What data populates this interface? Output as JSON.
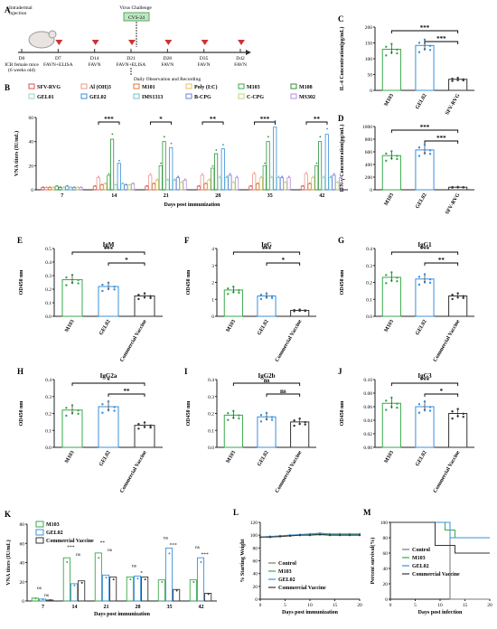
{
  "timeline": {
    "injection_label": "Intradermal\ninjection",
    "mouse_label": "ICR female mice\n(6 weeks old)",
    "challenge_label": "Virus Challenge",
    "challenge_virus": "CVS-24",
    "daily_label": "Daily Observation and Recording",
    "days": [
      "D0",
      "D7",
      "D14",
      "D21",
      "D28",
      "D35",
      "D42"
    ],
    "day_notes": [
      "",
      "FAVN+ELISA",
      "FAVN",
      "FAVN+ELISA",
      "FAVN",
      "FAVN",
      "FAVN"
    ]
  },
  "colors": {
    "SFV-RVG": "#d9534f",
    "Al (OH)3": "#e8998d",
    "M101": "#e0793a",
    "Poly (I:C)": "#f0b860",
    "M103": "#3aa84a",
    "M108": "#2f8f3a",
    "GEL01": "#9ad6b8",
    "GEL02": "#3b8fd9",
    "IMS1313": "#6cc6c8",
    "B-CPG": "#6c7fd9",
    "C-CPG": "#b7d97a",
    "MS302": "#b58fd9",
    "Commercial Vaccine": "#333333",
    "Control": "#777777"
  },
  "chart_data": [
    {
      "panel": "B",
      "type": "bar",
      "ylabel": "VNA titers (IU/mL)",
      "xlabel": "Days post immunization",
      "categories": [
        "7",
        "14",
        "21",
        "28",
        "35",
        "42"
      ],
      "ylim": [
        0,
        60
      ],
      "yticks": [
        0,
        20,
        40,
        60
      ],
      "series": [
        {
          "name": "SFV-RVG",
          "values": [
            2,
            3,
            3,
            3,
            3,
            3
          ]
        },
        {
          "name": "Al (OH)3",
          "values": [
            2,
            10,
            12,
            12,
            13,
            13
          ]
        },
        {
          "name": "M101",
          "values": [
            2,
            4,
            5,
            5,
            5,
            5
          ]
        },
        {
          "name": "Poly (I:C)",
          "values": [
            2,
            5,
            8,
            8,
            10,
            10
          ]
        },
        {
          "name": "M103",
          "values": [
            3,
            12,
            20,
            18,
            20,
            20
          ]
        },
        {
          "name": "M108",
          "values": [
            2,
            42,
            40,
            30,
            40,
            40
          ]
        },
        {
          "name": "GEL01",
          "values": [
            2,
            4,
            8,
            10,
            10,
            10
          ]
        },
        {
          "name": "GEL02",
          "values": [
            3,
            22,
            35,
            34,
            52,
            46
          ]
        },
        {
          "name": "IMS1313",
          "values": [
            2,
            5,
            8,
            10,
            10,
            10
          ]
        },
        {
          "name": "B-CPG",
          "values": [
            2,
            4,
            10,
            12,
            10,
            12
          ]
        },
        {
          "name": "C-CPG",
          "values": [
            2,
            4,
            6,
            6,
            6,
            6
          ]
        },
        {
          "name": "MS302",
          "values": [
            2,
            5,
            8,
            10,
            10,
            10
          ]
        }
      ],
      "annotations": [
        "***",
        "*",
        "**",
        "***",
        "**"
      ]
    },
    {
      "panel": "C",
      "title": "IL-4 Concentration(pg/mL)",
      "type": "bar",
      "ylabel": "IL-4 Concentration(pg/mL)",
      "categories": [
        "M103",
        "GEL02",
        "SFV-RVG"
      ],
      "values": [
        130,
        142,
        35
      ],
      "ylim": [
        0,
        200
      ],
      "yticks": [
        0,
        50,
        100,
        150,
        200
      ],
      "annotations": [
        "***",
        "***"
      ]
    },
    {
      "panel": "D",
      "title": "IFN-γ Concentration(pg/mL)",
      "type": "bar",
      "ylabel": "IFN-γ Concentration(pg/mL)",
      "categories": [
        "M103",
        "GEL02",
        "SFV-RVG"
      ],
      "values": [
        540,
        630,
        40
      ],
      "ylim": [
        0,
        1000
      ],
      "yticks": [
        0,
        200,
        400,
        600,
        800,
        1000
      ],
      "annotations": [
        "***",
        "***"
      ]
    },
    {
      "panel": "E",
      "title": "IgM",
      "type": "bar",
      "ylabel": "OD450 nm",
      "categories": [
        "M103",
        "GEL02",
        "Commercial Vaccine"
      ],
      "values": [
        0.27,
        0.22,
        0.15
      ],
      "ylim": [
        0,
        0.5
      ],
      "yticks": [
        0.0,
        0.1,
        0.2,
        0.3,
        0.4,
        0.5
      ],
      "annotations": [
        "***",
        "*"
      ]
    },
    {
      "panel": "F",
      "title": "IgG",
      "type": "bar",
      "ylabel": "OD450 nm",
      "categories": [
        "M103",
        "GEL02",
        "Commercial Vaccine"
      ],
      "values": [
        1.55,
        1.2,
        0.35
      ],
      "ylim": [
        0,
        4
      ],
      "yticks": [
        0,
        1,
        2,
        3,
        4
      ],
      "annotations": [
        "***",
        "*"
      ]
    },
    {
      "panel": "G",
      "title": "IgG1",
      "type": "bar",
      "ylabel": "OD450 nm",
      "categories": [
        "M103",
        "GEL02",
        "Commercial Vaccine"
      ],
      "values": [
        0.23,
        0.22,
        0.12
      ],
      "ylim": [
        0,
        0.4
      ],
      "yticks": [
        0.0,
        0.1,
        0.2,
        0.3,
        0.4
      ],
      "annotations": [
        "***",
        "**"
      ]
    },
    {
      "panel": "H",
      "title": "IgG2a",
      "type": "bar",
      "ylabel": "OD450 nm",
      "categories": [
        "M103",
        "GEL02",
        "Commercial Vaccine"
      ],
      "values": [
        0.22,
        0.24,
        0.13
      ],
      "ylim": [
        0,
        0.4
      ],
      "yticks": [
        0.0,
        0.1,
        0.2,
        0.3,
        0.4
      ],
      "annotations": [
        "*",
        "**"
      ]
    },
    {
      "panel": "I",
      "title": "IgG2b",
      "type": "bar",
      "ylabel": "OD450 nm",
      "categories": [
        "M103",
        "GEL02",
        "Commercial Vaccine"
      ],
      "values": [
        0.19,
        0.18,
        0.15
      ],
      "ylim": [
        0,
        0.4
      ],
      "yticks": [
        0.0,
        0.1,
        0.2,
        0.3,
        0.4
      ],
      "annotations": [
        "ns",
        "ns"
      ]
    },
    {
      "panel": "J",
      "title": "IgG3",
      "type": "bar",
      "ylabel": "OD450 nm",
      "categories": [
        "M103",
        "GEL02",
        "Commercial Vaccine"
      ],
      "values": [
        0.065,
        0.06,
        0.05
      ],
      "ylim": [
        0,
        0.1
      ],
      "yticks": [
        0.0,
        0.02,
        0.04,
        0.06,
        0.08,
        0.1
      ],
      "annotations": [
        "***",
        "*"
      ]
    },
    {
      "panel": "K",
      "type": "bar",
      "ylabel": "VNA titers (IU/mL)",
      "xlabel": "Days post immunization",
      "categories": [
        "7",
        "14",
        "21",
        "28",
        "35",
        "42"
      ],
      "ylim": [
        0,
        80
      ],
      "yticks": [
        0,
        20,
        40,
        60,
        80
      ],
      "series": [
        {
          "name": "M103",
          "values": [
            3,
            45,
            50,
            25,
            22,
            22
          ]
        },
        {
          "name": "GEL02",
          "values": [
            2,
            18,
            27,
            26,
            55,
            45
          ]
        },
        {
          "name": "Commercial Vaccine",
          "values": [
            1,
            21,
            25,
            25,
            12,
            8
          ]
        }
      ],
      "annotations": [
        [
          "ns",
          "ns"
        ],
        [
          "***",
          "ns"
        ],
        [
          "**",
          "ns"
        ],
        [
          "ns",
          "*"
        ],
        [
          "ns",
          "***"
        ],
        [
          "ns",
          "***"
        ]
      ]
    },
    {
      "panel": "L",
      "type": "line",
      "ylabel": "% Starting Weight",
      "xlabel": "Days post immunization",
      "x": [
        0,
        2,
        4,
        6,
        8,
        10,
        12,
        14,
        16,
        18,
        20
      ],
      "xlim": [
        0,
        20
      ],
      "xticks": [
        0,
        5,
        10,
        15,
        20
      ],
      "ylim": [
        0,
        120
      ],
      "yticks": [
        0,
        20,
        40,
        60,
        80,
        100,
        120
      ],
      "series": [
        {
          "name": "Control",
          "values": [
            97,
            97,
            98,
            99,
            100,
            100,
            101,
            100,
            100,
            100,
            100
          ]
        },
        {
          "name": "M103",
          "values": [
            97,
            98,
            98,
            99,
            100,
            101,
            102,
            101,
            101,
            101,
            101
          ]
        },
        {
          "name": "GEL02",
          "values": [
            97,
            98,
            99,
            100,
            101,
            102,
            103,
            102,
            102,
            102,
            102
          ]
        },
        {
          "name": "Commercial Vaccine",
          "values": [
            97,
            97,
            98,
            99,
            100,
            100,
            101,
            100,
            100,
            100,
            100
          ]
        }
      ]
    },
    {
      "panel": "M",
      "type": "line",
      "ylabel": "Percent survival(%)",
      "xlabel": "Days post infection",
      "xlim": [
        0,
        20
      ],
      "xticks": [
        0,
        5,
        10,
        15,
        20
      ],
      "ylim": [
        0,
        100
      ],
      "yticks": [
        0,
        20,
        40,
        60,
        80,
        100
      ],
      "series": [
        {
          "name": "Control",
          "steps": [
            [
              0,
              100
            ],
            [
              12,
              100
            ],
            [
              12,
              0
            ],
            [
              20,
              0
            ]
          ]
        },
        {
          "name": "M103",
          "steps": [
            [
              0,
              100
            ],
            [
              11,
              100
            ],
            [
              11,
              90
            ],
            [
              13,
              90
            ],
            [
              13,
              80
            ],
            [
              20,
              80
            ]
          ]
        },
        {
          "name": "GEL02",
          "steps": [
            [
              0,
              100
            ],
            [
              12,
              100
            ],
            [
              12,
              80
            ],
            [
              20,
              80
            ]
          ]
        },
        {
          "name": "Commercial Vaccine",
          "steps": [
            [
              0,
              100
            ],
            [
              9,
              100
            ],
            [
              9,
              70
            ],
            [
              13,
              70
            ],
            [
              13,
              60
            ],
            [
              20,
              60
            ]
          ]
        }
      ]
    }
  ]
}
